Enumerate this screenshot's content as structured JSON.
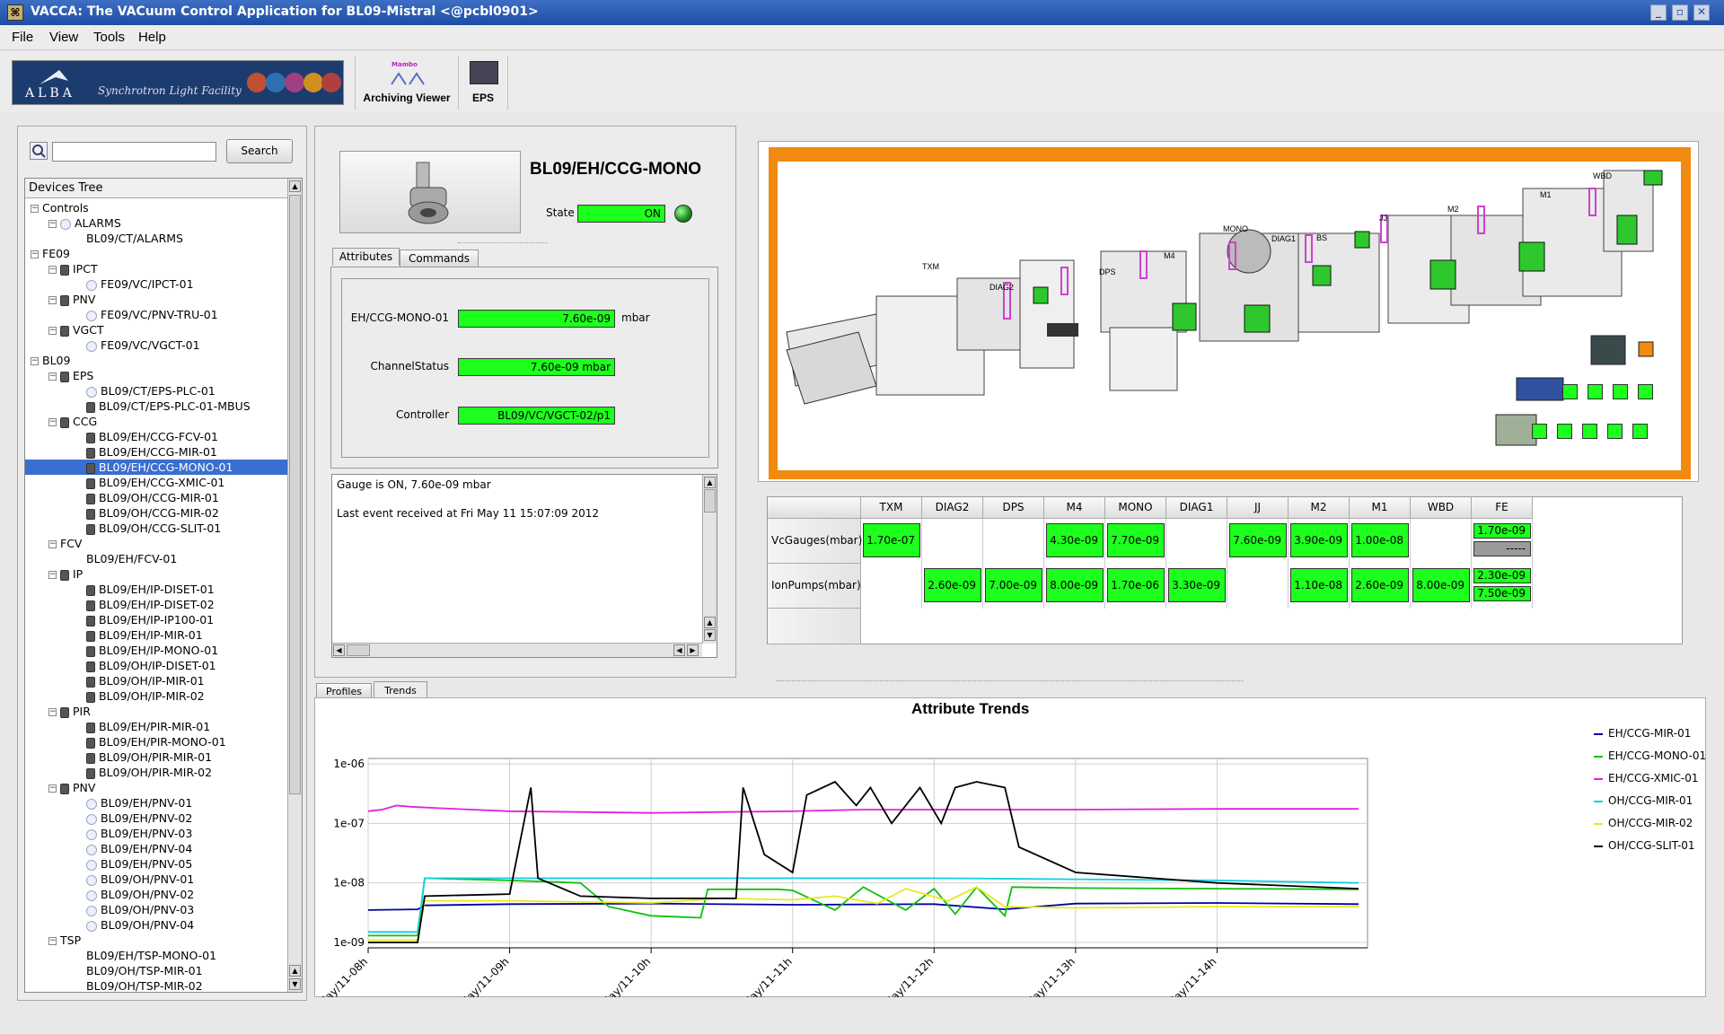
{
  "window": {
    "title": "VACCA: The VACuum Control Application for BL09-Mistral <@pcbl0901>"
  },
  "menu": [
    "File",
    "View",
    "Tools",
    "Help"
  ],
  "toolbar": {
    "logo_text": "ALBA",
    "logo_tagline": "Synchrotron Light Facility",
    "archiving_label": "Archiving Viewer",
    "mambo_label": "Mambo",
    "eps_label": "EPS"
  },
  "search": {
    "button": "Search",
    "value": ""
  },
  "tree": {
    "header": "Devices Tree",
    "nodes": [
      {
        "label": "Controls",
        "level": 0,
        "exp": "−",
        "icon": ""
      },
      {
        "label": "ALARMS",
        "level": 1,
        "exp": "−",
        "icon": "circle"
      },
      {
        "label": "BL09/CT/ALARMS",
        "level": 2,
        "exp": "",
        "icon": ""
      },
      {
        "label": "FE09",
        "level": 0,
        "exp": "−",
        "icon": ""
      },
      {
        "label": "IPCT",
        "level": 1,
        "exp": "−",
        "icon": "dev"
      },
      {
        "label": "FE09/VC/IPCT-01",
        "level": 2,
        "exp": "",
        "icon": "circle"
      },
      {
        "label": "PNV",
        "level": 1,
        "exp": "−",
        "icon": "dev"
      },
      {
        "label": "FE09/VC/PNV-TRU-01",
        "level": 2,
        "exp": "",
        "icon": "circle"
      },
      {
        "label": "VGCT",
        "level": 1,
        "exp": "−",
        "icon": "dev"
      },
      {
        "label": "FE09/VC/VGCT-01",
        "level": 2,
        "exp": "",
        "icon": "circle"
      },
      {
        "label": "BL09",
        "level": 0,
        "exp": "−",
        "icon": ""
      },
      {
        "label": "EPS",
        "level": 1,
        "exp": "−",
        "icon": "dev"
      },
      {
        "label": "BL09/CT/EPS-PLC-01",
        "level": 2,
        "exp": "",
        "icon": "circle"
      },
      {
        "label": "BL09/CT/EPS-PLC-01-MBUS",
        "level": 2,
        "exp": "",
        "icon": "dev"
      },
      {
        "label": "CCG",
        "level": 1,
        "exp": "−",
        "icon": "dev"
      },
      {
        "label": "BL09/EH/CCG-FCV-01",
        "level": 2,
        "exp": "",
        "icon": "dev"
      },
      {
        "label": "BL09/EH/CCG-MIR-01",
        "level": 2,
        "exp": "",
        "icon": "dev"
      },
      {
        "label": "BL09/EH/CCG-MONO-01",
        "level": 2,
        "exp": "",
        "icon": "dev",
        "sel": true
      },
      {
        "label": "BL09/EH/CCG-XMIC-01",
        "level": 2,
        "exp": "",
        "icon": "dev"
      },
      {
        "label": "BL09/OH/CCG-MIR-01",
        "level": 2,
        "exp": "",
        "icon": "dev"
      },
      {
        "label": "BL09/OH/CCG-MIR-02",
        "level": 2,
        "exp": "",
        "icon": "dev"
      },
      {
        "label": "BL09/OH/CCG-SLIT-01",
        "level": 2,
        "exp": "",
        "icon": "dev"
      },
      {
        "label": "FCV",
        "level": 1,
        "exp": "−",
        "icon": ""
      },
      {
        "label": "BL09/EH/FCV-01",
        "level": 2,
        "exp": "",
        "icon": ""
      },
      {
        "label": "IP",
        "level": 1,
        "exp": "−",
        "icon": "dev"
      },
      {
        "label": "BL09/EH/IP-DISET-01",
        "level": 2,
        "exp": "",
        "icon": "dev"
      },
      {
        "label": "BL09/EH/IP-DISET-02",
        "level": 2,
        "exp": "",
        "icon": "dev"
      },
      {
        "label": "BL09/EH/IP-IP100-01",
        "level": 2,
        "exp": "",
        "icon": "dev"
      },
      {
        "label": "BL09/EH/IP-MIR-01",
        "level": 2,
        "exp": "",
        "icon": "dev"
      },
      {
        "label": "BL09/EH/IP-MONO-01",
        "level": 2,
        "exp": "",
        "icon": "dev"
      },
      {
        "label": "BL09/OH/IP-DISET-01",
        "level": 2,
        "exp": "",
        "icon": "dev"
      },
      {
        "label": "BL09/OH/IP-MIR-01",
        "level": 2,
        "exp": "",
        "icon": "dev"
      },
      {
        "label": "BL09/OH/IP-MIR-02",
        "level": 2,
        "exp": "",
        "icon": "dev"
      },
      {
        "label": "PIR",
        "level": 1,
        "exp": "−",
        "icon": "dev"
      },
      {
        "label": "BL09/EH/PIR-MIR-01",
        "level": 2,
        "exp": "",
        "icon": "dev"
      },
      {
        "label": "BL09/EH/PIR-MONO-01",
        "level": 2,
        "exp": "",
        "icon": "dev"
      },
      {
        "label": "BL09/OH/PIR-MIR-01",
        "level": 2,
        "exp": "",
        "icon": "dev"
      },
      {
        "label": "BL09/OH/PIR-MIR-02",
        "level": 2,
        "exp": "",
        "icon": "dev"
      },
      {
        "label": "PNV",
        "level": 1,
        "exp": "−",
        "icon": "dev"
      },
      {
        "label": "BL09/EH/PNV-01",
        "level": 2,
        "exp": "",
        "icon": "circle"
      },
      {
        "label": "BL09/EH/PNV-02",
        "level": 2,
        "exp": "",
        "icon": "circle"
      },
      {
        "label": "BL09/EH/PNV-03",
        "level": 2,
        "exp": "",
        "icon": "circle"
      },
      {
        "label": "BL09/EH/PNV-04",
        "level": 2,
        "exp": "",
        "icon": "circle"
      },
      {
        "label": "BL09/EH/PNV-05",
        "level": 2,
        "exp": "",
        "icon": "circle"
      },
      {
        "label": "BL09/OH/PNV-01",
        "level": 2,
        "exp": "",
        "icon": "circle"
      },
      {
        "label": "BL09/OH/PNV-02",
        "level": 2,
        "exp": "",
        "icon": "circle"
      },
      {
        "label": "BL09/OH/PNV-03",
        "level": 2,
        "exp": "",
        "icon": "circle"
      },
      {
        "label": "BL09/OH/PNV-04",
        "level": 2,
        "exp": "",
        "icon": "circle"
      },
      {
        "label": "TSP",
        "level": 1,
        "exp": "−",
        "icon": ""
      },
      {
        "label": "BL09/EH/TSP-MONO-01",
        "level": 2,
        "exp": "",
        "icon": ""
      },
      {
        "label": "BL09/OH/TSP-MIR-01",
        "level": 2,
        "exp": "",
        "icon": ""
      },
      {
        "label": "BL09/OH/TSP-MIR-02",
        "level": 2,
        "exp": "",
        "icon": ""
      }
    ]
  },
  "device": {
    "name": "BL09/EH/CCG-MONO",
    "state_label": "State",
    "state_value": "ON",
    "tabs": [
      "Attributes",
      "Commands"
    ],
    "attributes": [
      {
        "label": "EH/CCG-MONO-01",
        "value": "7.60e-09",
        "unit": "mbar"
      },
      {
        "label": "ChannelStatus",
        "value": "7.60e-09 mbar",
        "unit": ""
      },
      {
        "label": "Controller",
        "value": "BL09/VC/VGCT-02/p1",
        "unit": ""
      }
    ],
    "log": [
      "Gauge is ON, 7.60e-09 mbar",
      "Last event received at Fri May 11 15:07:09 2012"
    ]
  },
  "synoptic": {
    "labels": [
      "TXM",
      "DIAG2",
      "DPS",
      "M4",
      "MONO",
      "DIAG1",
      "BS",
      "JJ",
      "M2",
      "M1",
      "WBD"
    ]
  },
  "pressure_table": {
    "columns": [
      "TXM",
      "DIAG2",
      "DPS",
      "M4",
      "MONO",
      "DIAG1",
      "JJ",
      "M2",
      "M1",
      "WBD",
      "FE"
    ],
    "rows": [
      {
        "label": "VcGauges(mbar)",
        "values": [
          "1.70e-07",
          "",
          "",
          "4.30e-09",
          "7.70e-09",
          "",
          "7.60e-09",
          "3.90e-09",
          "1.00e-08",
          "",
          "1.70e-09|-----"
        ]
      },
      {
        "label": "IonPumps(mbar)",
        "values": [
          "",
          "2.60e-09",
          "7.00e-09",
          "8.00e-09",
          "1.70e-06",
          "3.30e-09",
          "",
          "1.10e-08",
          "2.60e-09",
          "8.00e-09",
          "2.30e-09|7.50e-09"
        ]
      }
    ]
  },
  "bottom_tabs": [
    "Profiles",
    "Trends"
  ],
  "chart_data": {
    "type": "line",
    "title": "Attribute Trends",
    "y_scale": "log",
    "ylim": [
      1e-09,
      1e-06
    ],
    "y_ticks": [
      "1e-09",
      "1e-08",
      "1e-07",
      "1e-06"
    ],
    "x_ticks": [
      "May/11-08h",
      "May/11-09h",
      "May/11-10h",
      "May/11-11h",
      "May/11-12h",
      "May/11-13h",
      "May/11-14h"
    ],
    "x_range_hours": [
      8.0,
      15.0
    ],
    "grid": true,
    "legend_position": "right",
    "series": [
      {
        "name": "EH/CCG-MIR-01",
        "color": "#0000a0",
        "points": [
          [
            8.0,
            3.5e-09
          ],
          [
            8.35,
            3.6e-09
          ],
          [
            8.4,
            4.2e-09
          ],
          [
            9.0,
            4.4e-09
          ],
          [
            10.0,
            4.5e-09
          ],
          [
            11.0,
            4.3e-09
          ],
          [
            12.0,
            4.4e-09
          ],
          [
            12.5,
            3.6e-09
          ],
          [
            13.0,
            4.5e-09
          ],
          [
            14.0,
            4.6e-09
          ],
          [
            15.0,
            4.4e-09
          ]
        ]
      },
      {
        "name": "EH/CCG-MONO-01",
        "color": "#10c010",
        "points": [
          [
            8.0,
            1.3e-09
          ],
          [
            8.35,
            1.3e-09
          ],
          [
            8.4,
            1.2e-08
          ],
          [
            9.0,
            1.1e-08
          ],
          [
            9.5,
            1e-08
          ],
          [
            9.7,
            4e-09
          ],
          [
            10.0,
            2.8e-09
          ],
          [
            10.35,
            2.6e-09
          ],
          [
            10.4,
            7.8e-09
          ],
          [
            10.9,
            7.8e-09
          ],
          [
            11.0,
            7.5e-09
          ],
          [
            11.3,
            3.5e-09
          ],
          [
            11.5,
            8.5e-09
          ],
          [
            11.8,
            3.5e-09
          ],
          [
            12.0,
            8e-09
          ],
          [
            12.15,
            3e-09
          ],
          [
            12.3,
            8.5e-09
          ],
          [
            12.5,
            2.8e-09
          ],
          [
            12.55,
            8.5e-09
          ],
          [
            13.0,
            8.2e-09
          ],
          [
            14.0,
            8e-09
          ],
          [
            15.0,
            7.8e-09
          ]
        ]
      },
      {
        "name": "EH/CCG-XMIC-01",
        "color": "#e020e0",
        "points": [
          [
            8.0,
            1.6e-07
          ],
          [
            8.1,
            1.7e-07
          ],
          [
            8.2,
            2e-07
          ],
          [
            8.3,
            1.9e-07
          ],
          [
            8.5,
            1.8e-07
          ],
          [
            9.0,
            1.6e-07
          ],
          [
            9.5,
            1.55e-07
          ],
          [
            10.0,
            1.5e-07
          ],
          [
            10.5,
            1.55e-07
          ],
          [
            11.0,
            1.6e-07
          ],
          [
            11.5,
            1.7e-07
          ],
          [
            12.0,
            1.7e-07
          ],
          [
            13.0,
            1.7e-07
          ],
          [
            14.0,
            1.75e-07
          ],
          [
            15.0,
            1.75e-07
          ]
        ]
      },
      {
        "name": "OH/CCG-MIR-01",
        "color": "#10d0e0",
        "points": [
          [
            8.0,
            1.5e-09
          ],
          [
            8.35,
            1.5e-09
          ],
          [
            8.4,
            1.2e-08
          ],
          [
            9.0,
            1.2e-08
          ],
          [
            10.0,
            1.2e-08
          ],
          [
            11.0,
            1.2e-08
          ],
          [
            12.0,
            1.2e-08
          ],
          [
            13.0,
            1.15e-08
          ],
          [
            14.0,
            1.1e-08
          ],
          [
            15.0,
            1e-08
          ]
        ]
      },
      {
        "name": "OH/CCG-MIR-02",
        "color": "#e8e820",
        "points": [
          [
            8.0,
            1.1e-09
          ],
          [
            8.35,
            1.1e-09
          ],
          [
            8.4,
            5e-09
          ],
          [
            9.0,
            5e-09
          ],
          [
            10.0,
            4.6e-09
          ],
          [
            10.5,
            5.5e-09
          ],
          [
            11.0,
            5.2e-09
          ],
          [
            11.3,
            6e-09
          ],
          [
            11.6,
            4.5e-09
          ],
          [
            11.8,
            8e-09
          ],
          [
            12.1,
            5e-09
          ],
          [
            12.3,
            8.5e-09
          ],
          [
            12.5,
            4e-09
          ],
          [
            13.0,
            3.8e-09
          ],
          [
            14.0,
            4e-09
          ],
          [
            15.0,
            4e-09
          ]
        ]
      },
      {
        "name": "OH/CCG-SLIT-01",
        "color": "#000000",
        "points": [
          [
            8.0,
            1e-09
          ],
          [
            8.35,
            1e-09
          ],
          [
            8.4,
            6e-09
          ],
          [
            9.0,
            6.5e-09
          ],
          [
            9.15,
            4e-07
          ],
          [
            9.2,
            1.2e-08
          ],
          [
            9.5,
            6e-09
          ],
          [
            10.0,
            5.5e-09
          ],
          [
            10.6,
            5.5e-09
          ],
          [
            10.65,
            4e-07
          ],
          [
            10.8,
            3e-08
          ],
          [
            11.0,
            1.5e-08
          ],
          [
            11.1,
            3e-07
          ],
          [
            11.3,
            5e-07
          ],
          [
            11.45,
            2e-07
          ],
          [
            11.55,
            4e-07
          ],
          [
            11.7,
            1e-07
          ],
          [
            11.9,
            4e-07
          ],
          [
            12.05,
            1e-07
          ],
          [
            12.15,
            4e-07
          ],
          [
            12.3,
            5e-07
          ],
          [
            12.5,
            4e-07
          ],
          [
            12.6,
            4e-08
          ],
          [
            13.0,
            1.5e-08
          ],
          [
            14.0,
            1e-08
          ],
          [
            15.0,
            8e-09
          ]
        ]
      }
    ]
  }
}
